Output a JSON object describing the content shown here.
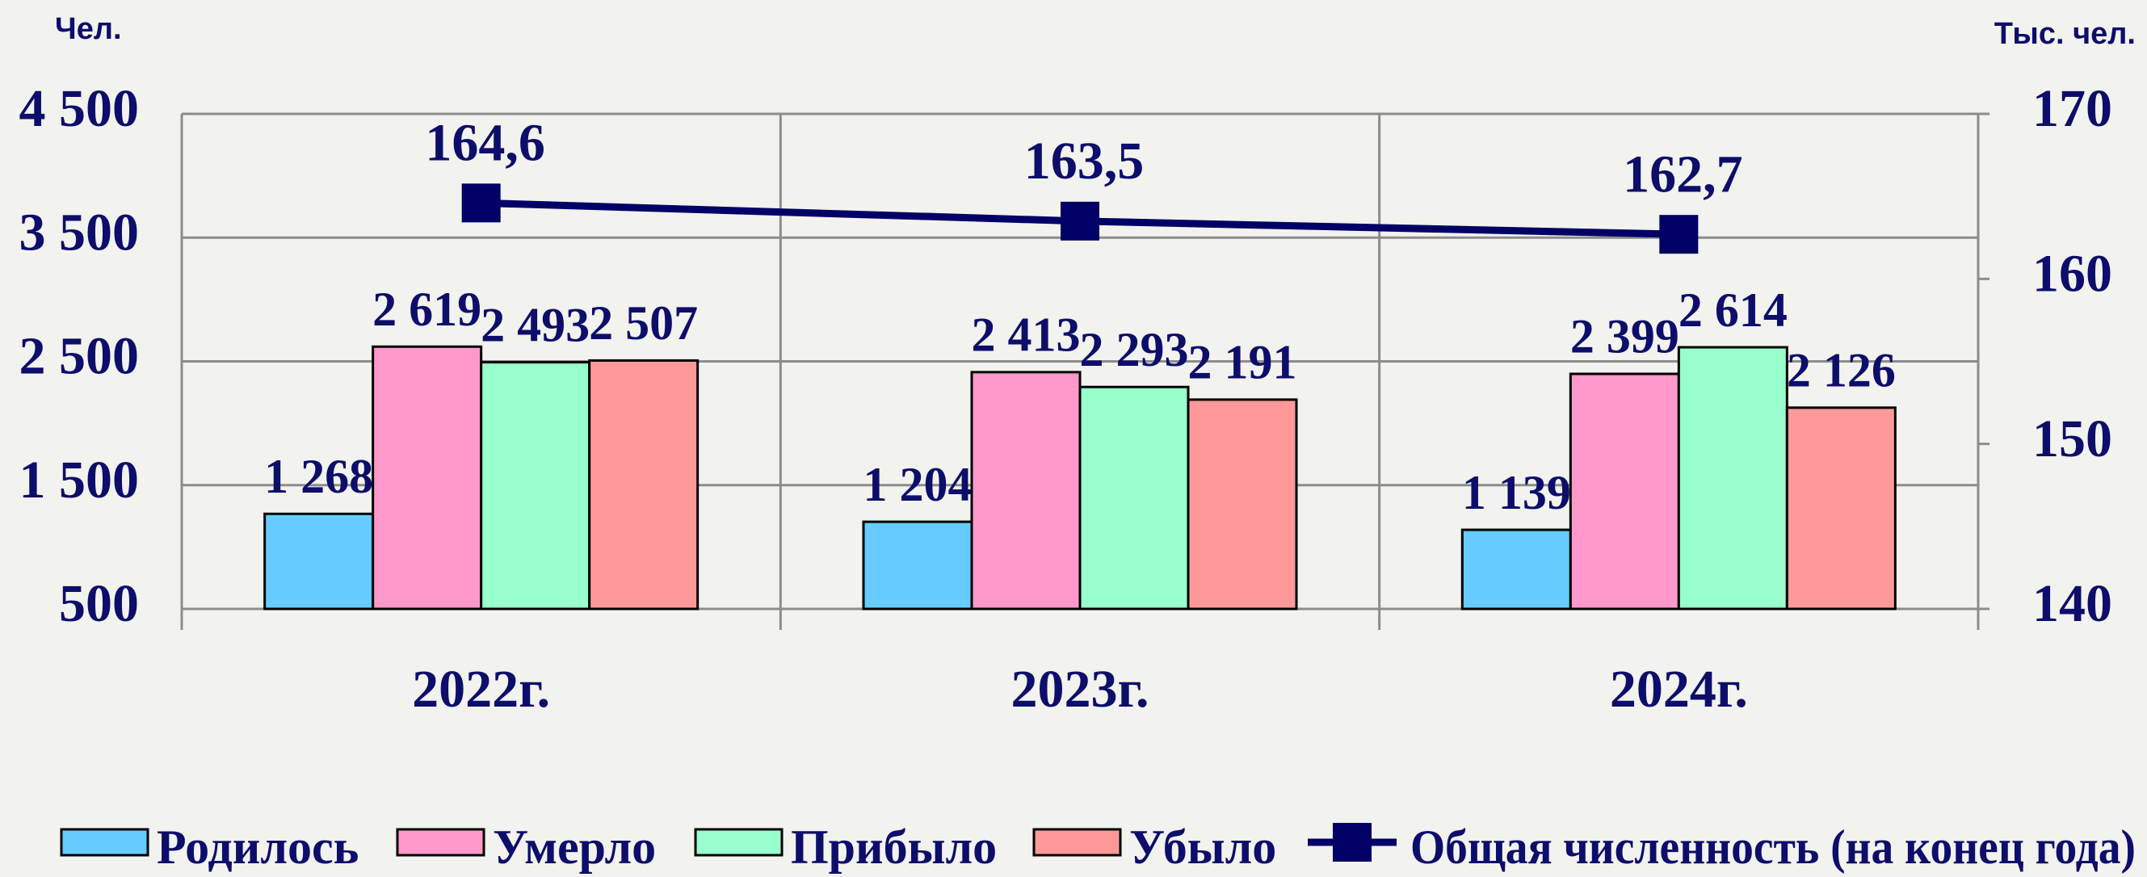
{
  "chart_data": {
    "type": "bar",
    "y_unit": "Чел.",
    "y2_unit": "Тыс. чел.",
    "categories": [
      "2022г.",
      "2023г.",
      "2024г."
    ],
    "ylim": [
      500,
      4500
    ],
    "yticks": [
      500,
      {
        "value": 1500,
        "label": "1 500"
      },
      {
        "value": 2500,
        "label": "2 500"
      },
      {
        "value": 3500,
        "label": "3 500"
      },
      {
        "value": 4500,
        "label": "4 500"
      }
    ],
    "y2lim": [
      140,
      170
    ],
    "y2ticks": [
      140,
      150,
      160,
      170
    ],
    "grid": true,
    "series": [
      {
        "name": "Родилось",
        "color": "#66ccff",
        "values": [
          1268,
          1204,
          1139
        ],
        "value_labels": [
          "1 268",
          "1 204",
          "1 139"
        ]
      },
      {
        "name": "Умерло",
        "color": "#ff99cc",
        "values": [
          2619,
          2413,
          2399
        ],
        "value_labels": [
          "2 619",
          "2 413",
          "2 399"
        ]
      },
      {
        "name": "Прибыло",
        "color": "#99ffcc",
        "values": [
          2493,
          2293,
          2614
        ],
        "value_labels": [
          "2 493",
          "2 293",
          "2 614"
        ]
      },
      {
        "name": "Убыло",
        "color": "#ff9999",
        "values": [
          2507,
          2191,
          2126
        ],
        "value_labels": [
          "2 507",
          "2 191",
          "2 126"
        ]
      },
      {
        "name": "Общая численность (на конец года)",
        "type": "line",
        "axis": "y2",
        "color": "#000066",
        "values": [
          164.6,
          163.5,
          162.7
        ],
        "value_labels": [
          "164,6",
          "163,5",
          "162,7"
        ]
      }
    ]
  }
}
